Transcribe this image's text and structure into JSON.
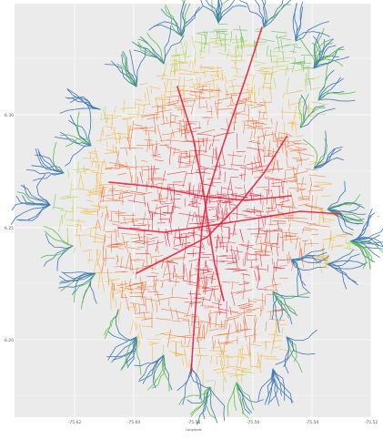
{
  "plot": {
    "panel_color": "#ebebeb",
    "gridline_color": "#ffffff",
    "top_left_label": "",
    "x_title": "Longitude",
    "y_title": "",
    "right_label": "—"
  },
  "axes": {
    "x_ticks": [
      "-75.62",
      "-75.60",
      "-75.58",
      "-75.56",
      "-75.54",
      "-75.52"
    ],
    "y_ticks": [
      "6.30",
      "6.25",
      "6.20"
    ]
  },
  "palette": {
    "core": "#e8203a",
    "inner": "#f26a2b",
    "middle": "#f6b32b",
    "yellow_green": "#b7d33a",
    "green": "#5cbf4a",
    "outer": "#3e78b6"
  }
}
